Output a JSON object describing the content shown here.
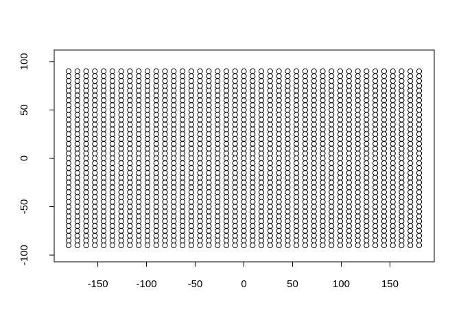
{
  "chart_data": {
    "type": "scatter",
    "title": "",
    "xlabel": "",
    "ylabel": "",
    "grid": false,
    "legend": "none",
    "background": "#ffffff",
    "axis_color": "#000000",
    "marker": {
      "shape": "open-circle",
      "color": "#000000",
      "fill": "none",
      "radius_px": 3.6,
      "stroke_px": 1
    },
    "x_axis": {
      "ticks": [
        -150,
        -100,
        -50,
        0,
        50,
        100,
        150
      ],
      "labels": [
        "-150",
        "-100",
        "-50",
        "0",
        "50",
        "100",
        "150"
      ]
    },
    "y_axis": {
      "ticks": [
        -100,
        -50,
        0,
        50,
        100
      ],
      "labels": [
        "-100",
        "-50",
        "0",
        "50",
        "100"
      ]
    },
    "xlim": [
      -194.4,
      195.5
    ],
    "ylim": [
      -107.2,
      111.9
    ],
    "point_grid": {
      "description": "regular rectangular lattice of open circles spanning x -180..180 step 9 and y -90..90 step 5",
      "x_start": -180,
      "x_end": 180,
      "x_step": 9,
      "y_start": -90,
      "y_end": 90,
      "y_step": 5,
      "n_columns": 41,
      "n_rows": 37,
      "n_points": 1517,
      "x_values": [
        -180,
        -171,
        -162,
        -153,
        -144,
        -135,
        -126,
        -117,
        -108,
        -99,
        -90,
        -81,
        -72,
        -63,
        -54,
        -45,
        -36,
        -27,
        -18,
        -9,
        0,
        9,
        18,
        27,
        36,
        45,
        54,
        63,
        72,
        81,
        90,
        99,
        108,
        117,
        126,
        135,
        144,
        153,
        162,
        171,
        180
      ],
      "y_values": [
        -90,
        -85,
        -80,
        -75,
        -70,
        -65,
        -60,
        -55,
        -50,
        -45,
        -40,
        -35,
        -30,
        -25,
        -20,
        -15,
        -10,
        -5,
        0,
        5,
        10,
        15,
        20,
        25,
        30,
        35,
        40,
        45,
        50,
        55,
        60,
        65,
        70,
        75,
        80,
        85,
        90
      ]
    }
  }
}
